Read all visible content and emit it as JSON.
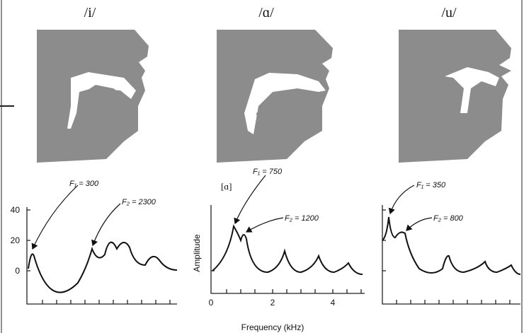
{
  "panels": [
    {
      "title": "/i/",
      "formants": [
        {
          "label": "F₁ = 300"
        },
        {
          "label": "F₂ = 2300"
        }
      ],
      "yticks": [
        40,
        20,
        0
      ]
    },
    {
      "title": "/ɑ/",
      "tag": "[ɑ]",
      "formants": [
        {
          "label": "F₁ = 750"
        },
        {
          "label": "F₂ = 1200"
        }
      ],
      "ylabel": "Amplitude",
      "xticks": [
        0,
        2,
        4
      ],
      "xlabel": "Frequency (kHz)"
    },
    {
      "title": "/u/",
      "formants": [
        {
          "label": "F₁ = 350"
        },
        {
          "label": "F₂ = 800"
        }
      ]
    }
  ]
}
